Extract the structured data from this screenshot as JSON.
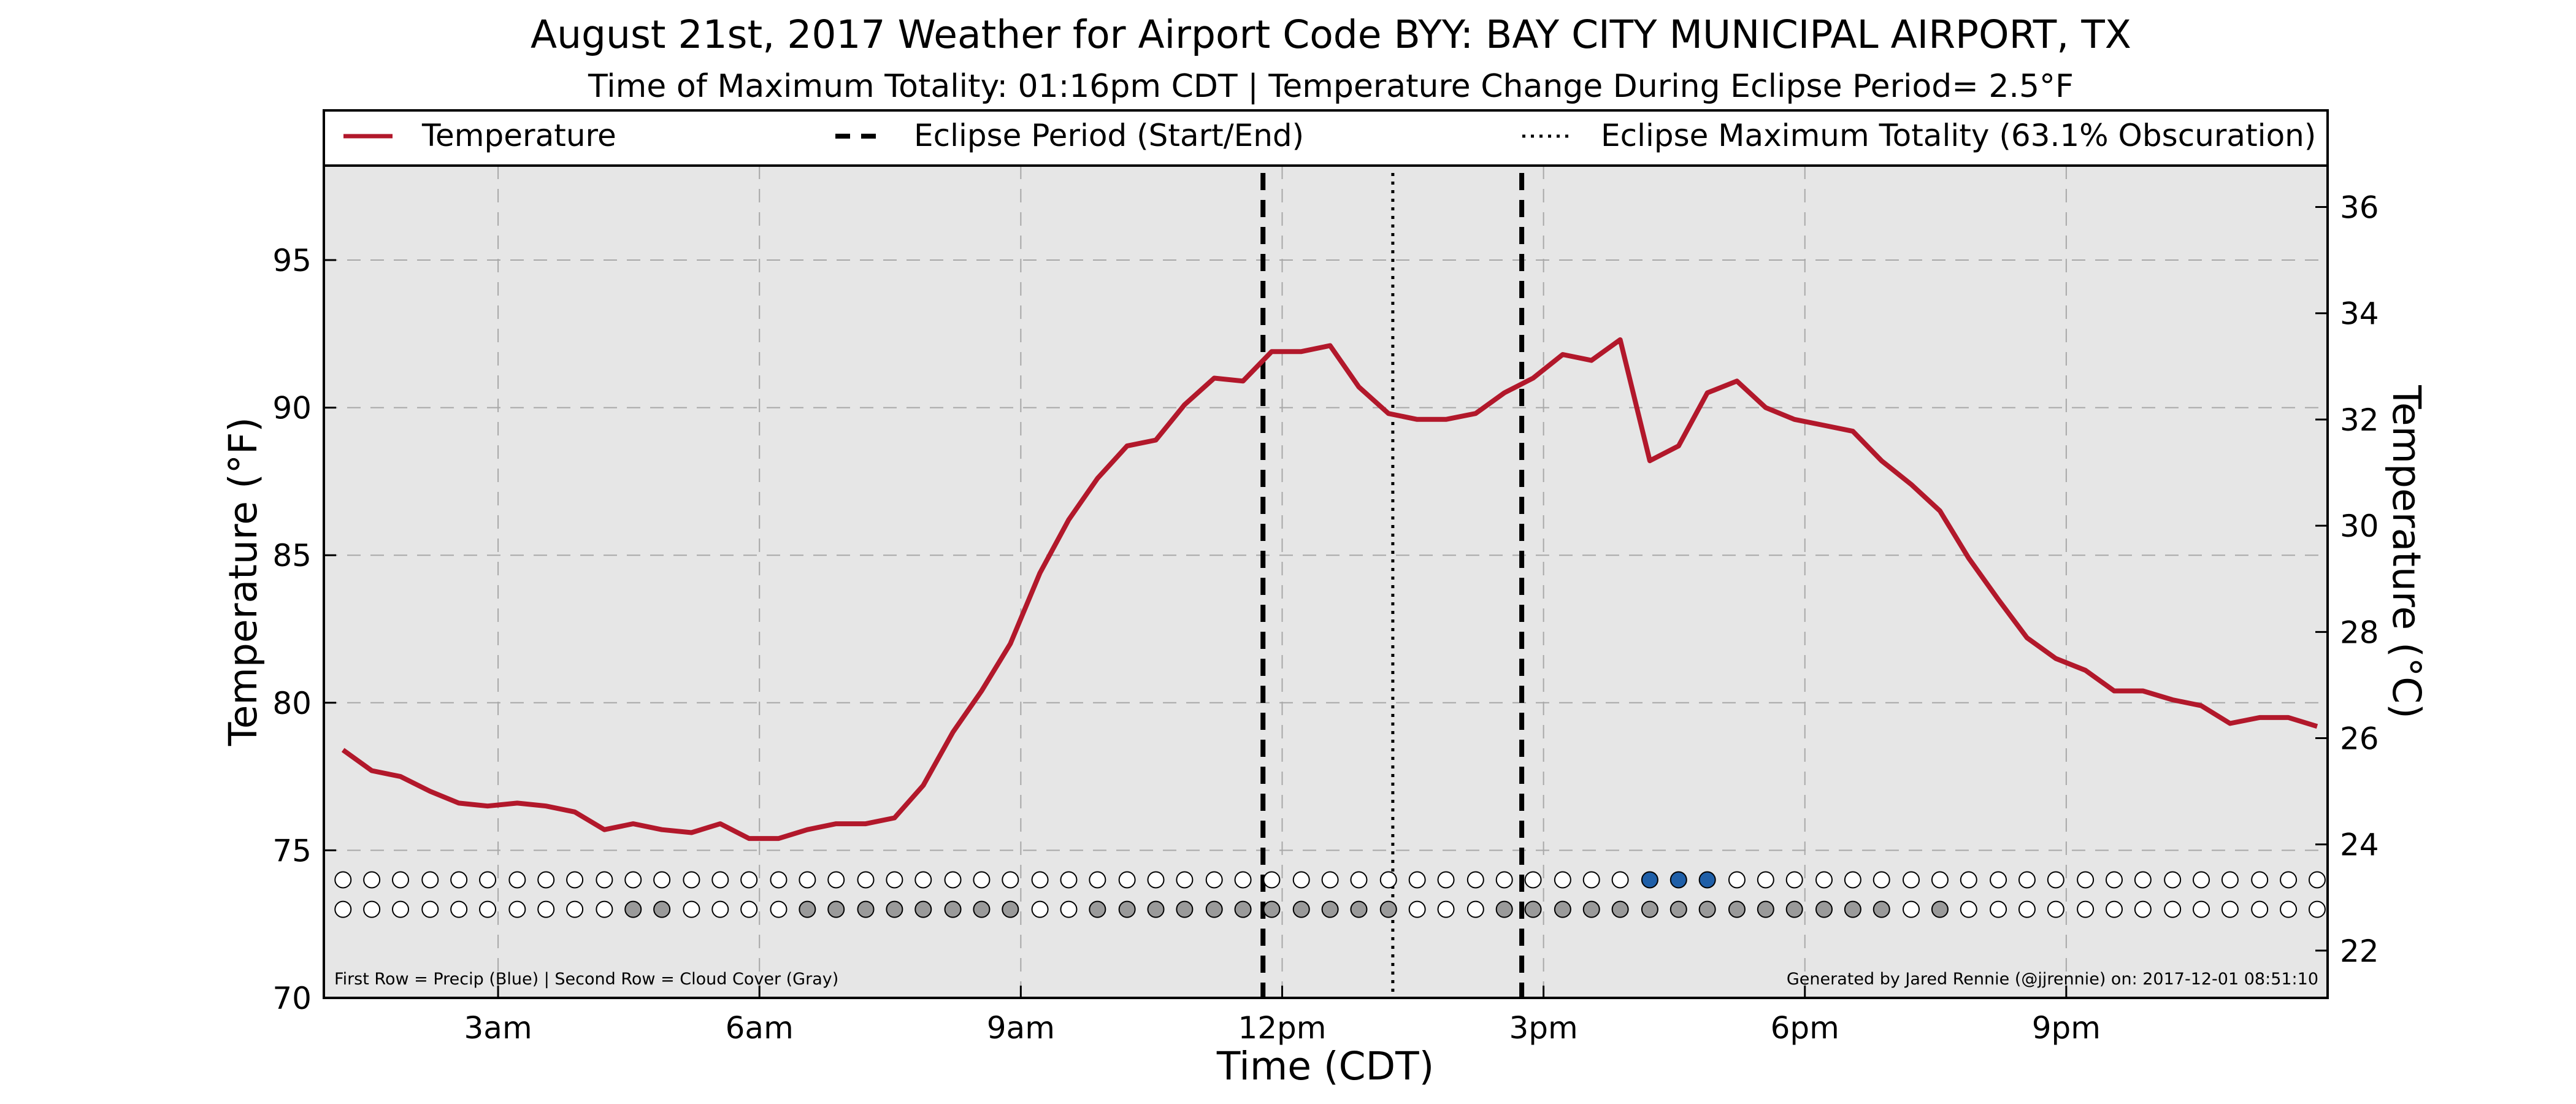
{
  "chart_data": {
    "type": "line",
    "title": "August 21st, 2017 Weather for Airport Code BYY: BAY CITY MUNICIPAL AIRPORT, TX",
    "subtitle": "Time of Maximum Totality: 01:16pm CDT | Temperature Change During Eclipse Period= 2.5°F",
    "xlabel": "Time (CDT)",
    "ylabel": "Temperature (°F)",
    "ylabel_right": "Temperature (°C)",
    "xlim": [
      1.0,
      24.0
    ],
    "ylim": [
      70,
      98.2
    ],
    "ylim_right": [
      21.11,
      36.78
    ],
    "x_ticks": [
      {
        "x": 3,
        "label": "3am"
      },
      {
        "x": 6,
        "label": "6am"
      },
      {
        "x": 9,
        "label": "9am"
      },
      {
        "x": 12,
        "label": "12pm"
      },
      {
        "x": 15,
        "label": "3pm"
      },
      {
        "x": 18,
        "label": "6pm"
      },
      {
        "x": 21,
        "label": "9pm"
      }
    ],
    "y_ticks": [
      70,
      75,
      80,
      85,
      90,
      95
    ],
    "y_ticks_right": [
      22,
      24,
      26,
      28,
      30,
      32,
      34,
      36
    ],
    "grid": true,
    "legend": {
      "placement": "top",
      "entries": [
        {
          "label": "Temperature",
          "style": "solid",
          "color": "#b2182b"
        },
        {
          "label": "Eclipse Period (Start/End)",
          "style": "dashed",
          "color": "#000000"
        },
        {
          "label": "Eclipse Maximum Totality (63.1% Obscuration)",
          "style": "dotted",
          "color": "#000000"
        }
      ]
    },
    "series": [
      {
        "name": "Temperature",
        "color": "#b2182b",
        "x": [
          1.22,
          1.55,
          1.88,
          2.22,
          2.55,
          2.88,
          3.22,
          3.55,
          3.88,
          4.22,
          4.55,
          4.88,
          5.22,
          5.55,
          5.88,
          6.22,
          6.55,
          6.88,
          7.22,
          7.55,
          7.88,
          8.22,
          8.55,
          8.88,
          9.22,
          9.55,
          9.88,
          10.22,
          10.55,
          10.88,
          11.22,
          11.55,
          11.88,
          12.22,
          12.55,
          12.88,
          13.22,
          13.55,
          13.88,
          14.22,
          14.55,
          14.88,
          15.22,
          15.55,
          15.88,
          16.22,
          16.55,
          16.88,
          17.22,
          17.55,
          17.88,
          18.22,
          18.55,
          18.88,
          19.22,
          19.55,
          19.88,
          20.22,
          20.55,
          20.88,
          21.22,
          21.55,
          21.88,
          22.22,
          22.55,
          22.88,
          23.22,
          23.55,
          23.88
        ],
        "values": [
          78.4,
          77.7,
          77.5,
          77.0,
          76.6,
          76.5,
          76.6,
          76.5,
          76.3,
          75.7,
          75.9,
          75.7,
          75.6,
          75.9,
          75.4,
          75.4,
          75.7,
          75.9,
          75.9,
          76.1,
          77.2,
          79.0,
          80.4,
          82.0,
          84.4,
          86.2,
          87.6,
          88.7,
          88.9,
          90.1,
          91.0,
          90.9,
          91.9,
          91.9,
          92.1,
          90.7,
          89.8,
          89.6,
          89.6,
          89.8,
          90.5,
          91.0,
          91.8,
          91.6,
          92.3,
          88.2,
          88.7,
          90.5,
          90.9,
          90.0,
          89.6,
          89.4,
          89.2,
          88.2,
          87.4,
          86.5,
          84.9,
          83.5,
          82.2,
          81.5,
          81.1,
          80.4,
          80.4,
          80.1,
          79.9,
          79.3,
          79.5,
          79.5,
          79.2
        ]
      }
    ],
    "eclipse_start": 11.78,
    "eclipse_max": 13.27,
    "eclipse_end": 14.75,
    "indicator_rows": {
      "y_row1": 74.0,
      "y_row2": 73.0,
      "x": [
        1.22,
        1.55,
        1.88,
        2.22,
        2.55,
        2.88,
        3.22,
        3.55,
        3.88,
        4.22,
        4.55,
        4.88,
        5.22,
        5.55,
        5.88,
        6.22,
        6.55,
        6.88,
        7.22,
        7.55,
        7.88,
        8.22,
        8.55,
        8.88,
        9.22,
        9.55,
        9.88,
        10.22,
        10.55,
        10.88,
        11.22,
        11.55,
        11.88,
        12.22,
        12.55,
        12.88,
        13.22,
        13.55,
        13.88,
        14.22,
        14.55,
        14.88,
        15.22,
        15.55,
        15.88,
        16.22,
        16.55,
        16.88,
        17.22,
        17.55,
        17.88,
        18.22,
        18.55,
        18.88,
        19.22,
        19.55,
        19.88,
        20.22,
        20.55,
        20.88,
        21.22,
        21.55,
        21.88,
        22.22,
        22.55,
        22.88,
        23.22,
        23.55,
        23.88
      ],
      "precip": [
        0,
        0,
        0,
        0,
        0,
        0,
        0,
        0,
        0,
        0,
        0,
        0,
        0,
        0,
        0,
        0,
        0,
        0,
        0,
        0,
        0,
        0,
        0,
        0,
        0,
        0,
        0,
        0,
        0,
        0,
        0,
        0,
        0,
        0,
        0,
        0,
        0,
        0,
        0,
        0,
        0,
        0,
        0,
        0,
        0,
        1,
        1,
        1,
        0,
        0,
        0,
        0,
        0,
        0,
        0,
        0,
        0,
        0,
        0,
        0,
        0,
        0,
        0,
        0,
        0,
        0,
        0,
        0,
        0
      ],
      "cloud": [
        0,
        0,
        0,
        0,
        0,
        0,
        0,
        0,
        0,
        0,
        1,
        1,
        0,
        0,
        0,
        0,
        1,
        1,
        1,
        1,
        1,
        1,
        1,
        1,
        0,
        0,
        1,
        1,
        1,
        1,
        1,
        1,
        1,
        1,
        1,
        1,
        1,
        0,
        0,
        0,
        1,
        1,
        1,
        1,
        1,
        1,
        1,
        1,
        1,
        1,
        1,
        1,
        1,
        1,
        0,
        1,
        0,
        0,
        0,
        0,
        0,
        0,
        0,
        0,
        0,
        0,
        0,
        0,
        0
      ],
      "precip_color": "#1f5fa8",
      "cloud_color": "#9a9a9a"
    },
    "footnote_left": "First Row = Precip (Blue) | Second Row = Cloud Cover (Gray)",
    "footnote_right": "Generated by Jared Rennie (@jjrennie) on: 2017-12-01 08:51:10"
  }
}
